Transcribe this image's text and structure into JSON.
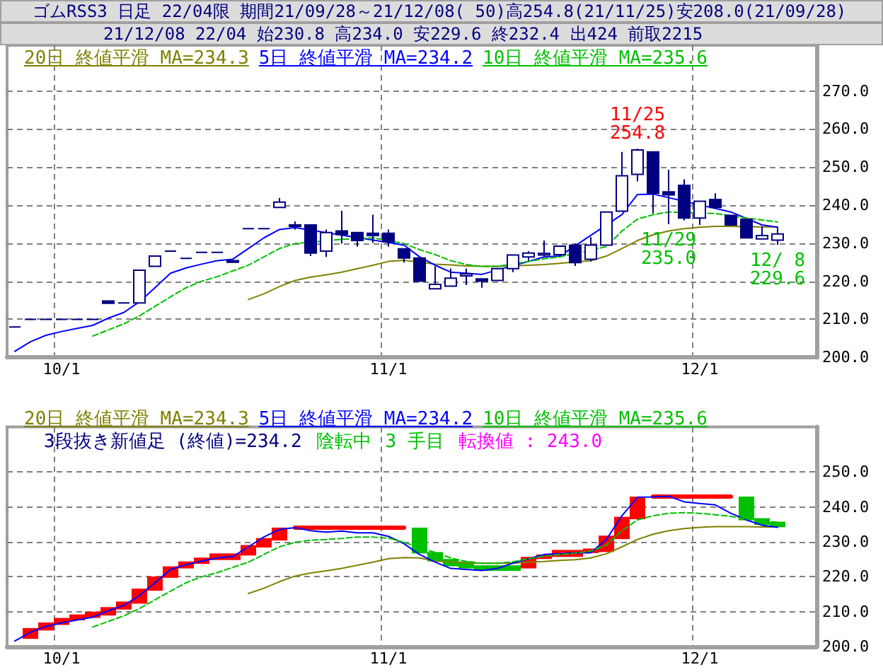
{
  "chart_data": [
    {
      "type": "candlestick",
      "title": "ゴムRSS3 日足 22/04限 期間21/09/28～21/12/08( 50)高254.8(21/11/25)安208.0(21/09/28)",
      "subtitle": "21/12/08 22/04 始230.8 高234.0 安229.6 終232.4 出424 前取2215",
      "categories": [
        null,
        null,
        null,
        "10/1",
        null,
        null,
        null,
        null,
        null,
        null,
        null,
        null,
        null,
        null,
        null,
        null,
        null,
        null,
        null,
        null,
        null,
        null,
        null,
        null,
        "11/1",
        null,
        null,
        null,
        null,
        null,
        null,
        null,
        null,
        null,
        null,
        null,
        null,
        null,
        null,
        null,
        null,
        null,
        null,
        null,
        "12/1",
        null,
        null,
        null,
        null,
        null
      ],
      "ohlc": [
        [
          208.0,
          208.0,
          208.0,
          208.0
        ],
        [
          210.0,
          210.0,
          210.0,
          210.0
        ],
        [
          210.0,
          210.0,
          210.0,
          210.0
        ],
        [
          210.0,
          210.0,
          210.0,
          210.0
        ],
        [
          210.0,
          210.0,
          210.0,
          210.0
        ],
        [
          210.0,
          210.0,
          210.0,
          210.0
        ],
        [
          214.8,
          214.8,
          214.2,
          214.2
        ],
        [
          214.3,
          214.3,
          214.3,
          214.3
        ],
        [
          214.3,
          222.9,
          214.3,
          222.9
        ],
        [
          223.9,
          226.6,
          223.9,
          226.6
        ],
        [
          227.9,
          227.9,
          227.9,
          227.9
        ],
        [
          226.0,
          226.0,
          226.0,
          226.0
        ],
        [
          227.6,
          227.6,
          227.6,
          227.6
        ],
        [
          227.6,
          227.6,
          227.6,
          227.6
        ],
        [
          225.4,
          225.4,
          225.0,
          225.0
        ],
        [
          233.8,
          233.8,
          233.8,
          233.8
        ],
        [
          233.8,
          233.8,
          233.8,
          233.8
        ],
        [
          239.4,
          241.9,
          239.4,
          240.8
        ],
        [
          234.4,
          235.7,
          233.6,
          234.8
        ],
        [
          234.8,
          234.8,
          226.6,
          227.4
        ],
        [
          227.9,
          233.6,
          226.4,
          232.8
        ],
        [
          233.2,
          238.5,
          229.9,
          232.3
        ],
        [
          232.8,
          232.8,
          229.1,
          230.7
        ],
        [
          232.6,
          237.5,
          230.1,
          232.0
        ],
        [
          232.6,
          233.6,
          229.1,
          230.4
        ],
        [
          228.5,
          228.5,
          224.9,
          226.1
        ],
        [
          226.1,
          226.1,
          220.0,
          220.0
        ],
        [
          218.0,
          223.9,
          218.0,
          219.2
        ],
        [
          218.7,
          223.3,
          218.7,
          220.8
        ],
        [
          221.4,
          223.3,
          219.0,
          221.9
        ],
        [
          220.6,
          220.6,
          218.3,
          220.0
        ],
        [
          220.2,
          223.3,
          220.2,
          223.3
        ],
        [
          223.3,
          226.9,
          222.4,
          226.9
        ],
        [
          226.4,
          227.9,
          225.4,
          227.4
        ],
        [
          226.9,
          230.7,
          226.4,
          227.3
        ],
        [
          227.0,
          229.2,
          226.5,
          229.2
        ],
        [
          229.5,
          229.9,
          224.0,
          224.9
        ],
        [
          225.8,
          231.6,
          225.2,
          229.5
        ],
        [
          229.5,
          238.2,
          229.5,
          238.2
        ],
        [
          238.4,
          254.0,
          238.4,
          247.7
        ],
        [
          248.1,
          254.8,
          246.2,
          254.5
        ],
        [
          254.0,
          254.0,
          237.8,
          243.1
        ],
        [
          243.5,
          249.3,
          235.0,
          242.7
        ],
        [
          245.2,
          246.8,
          236.0,
          236.6
        ],
        [
          236.6,
          241.0,
          234.8,
          241.0
        ],
        [
          241.5,
          243.1,
          239.0,
          239.4
        ],
        [
          237.3,
          237.3,
          234.8,
          234.8
        ],
        [
          236.3,
          236.3,
          231.4,
          231.4
        ],
        [
          231.1,
          234.4,
          231.1,
          232.0
        ],
        [
          230.8,
          234.0,
          229.6,
          232.4
        ]
      ],
      "color": "#000080",
      "series": [
        {
          "name": "20日 終値平滑 MA=234.3",
          "type": "line",
          "color": "#808000",
          "line_style": "solid",
          "values": [
            null,
            null,
            null,
            null,
            null,
            null,
            null,
            null,
            null,
            null,
            null,
            null,
            null,
            null,
            null,
            215.2,
            216.7,
            218.6,
            220.2,
            221.1,
            221.7,
            222.4,
            223.3,
            224.2,
            225.2,
            225.5,
            null,
            224.5,
            224.3,
            224.0,
            223.9,
            223.9,
            null,
            224.2,
            224.4,
            224.7,
            null,
            225.4,
            226.6,
            228.6,
            230.7,
            232.2,
            233.2,
            233.8,
            234.2,
            234.4,
            234.4,
            null,
            234.3,
            234.3
          ]
        },
        {
          "name": "5日 終値平滑 MA=234.2",
          "type": "line",
          "color": "#0000ff",
          "line_style": "solid",
          "values": [
            201.6,
            204.1,
            205.8,
            206.8,
            207.6,
            208.4,
            210.3,
            211.8,
            214.6,
            218.3,
            222.1,
            223.5,
            224.5,
            225.4,
            225.8,
            228.6,
            231.4,
            233.6,
            234.1,
            null,
            null,
            null,
            null,
            null,
            null,
            229.5,
            226.4,
            224.2,
            222.4,
            222.1,
            221.8,
            null,
            null,
            225.2,
            226.4,
            226.6,
            null,
            null,
            null,
            237.5,
            242.8,
            242.9,
            null,
            null,
            null,
            null,
            238.2,
            null,
            234.8,
            234.2
          ]
        },
        {
          "name": "10日 終値平滑 MA=235.6",
          "type": "line",
          "color": "#00c000",
          "line_style": "dashed",
          "values": [
            null,
            null,
            null,
            null,
            null,
            205.6,
            207.2,
            208.8,
            210.9,
            213.4,
            215.9,
            218.3,
            220.0,
            221.2,
            222.7,
            224.2,
            226.4,
            228.6,
            229.9,
            null,
            null,
            231.0,
            null,
            231.4,
            null,
            229.9,
            228.3,
            227.0,
            225.4,
            224.4,
            223.9,
            223.9,
            null,
            225.2,
            225.9,
            226.4,
            null,
            null,
            229.1,
            233.2,
            236.3,
            237.5,
            238.2,
            null,
            null,
            237.8,
            null,
            236.6,
            236.1,
            235.6
          ]
        }
      ],
      "ylim": [
        200,
        282
      ],
      "yticks": [
        {
          "value": 200,
          "label": "200.0"
        },
        {
          "value": 210,
          "label": "210.0"
        },
        {
          "value": 220,
          "label": "220.0"
        },
        {
          "value": 230,
          "label": "230.0"
        },
        {
          "value": 240,
          "label": "240.0"
        },
        {
          "value": 250,
          "label": "250.0"
        },
        {
          "value": 260,
          "label": "260.0"
        },
        {
          "value": 270,
          "label": "270.0"
        }
      ],
      "grid": true,
      "legend": "top left",
      "marker": "none",
      "annotations": [
        {
          "text": "11/25\n254.8",
          "y": 254.8
        },
        {
          "text": "11/29\n235.0",
          "y": 235.0
        },
        {
          "text": "12/ 8\n229.6",
          "y": 229.6
        }
      ]
    },
    {
      "type": "bar",
      "title": "3段抜き新値足 (終値)=234.2",
      "annotations": [
        "陰転中",
        "3 手目",
        "転換値 : 243.0"
      ],
      "categories": [
        null,
        null,
        null,
        "10/1",
        null,
        null,
        null,
        null,
        null,
        null,
        null,
        null,
        null,
        null,
        null,
        null,
        null,
        null,
        null,
        null,
        null,
        null,
        null,
        null,
        "11/1",
        null,
        null,
        null,
        null,
        null,
        null,
        null,
        null,
        null,
        null,
        null,
        null,
        null,
        null,
        null,
        null,
        null,
        null,
        null,
        "12/1",
        null,
        null,
        null,
        null,
        null
      ],
      "series": [
        {
          "type": "bar",
          "base": [
            null,
            202.2,
            204.6,
            206.2,
            207.5,
            208.2,
            208.9,
            210.6,
            212.3,
            216.0,
            219.7,
            222.4,
            223.7,
            224.8,
            224.8,
            226.1,
            228.4,
            230.4,
            null,
            null,
            null,
            null,
            null,
            null,
            null,
            null,
            234.1,
            227.1,
            225.1,
            224.4,
            223.3,
            223.3,
            223.3,
            222.4,
            225.1,
            225.7,
            225.7,
            226.8,
            227.1,
            230.8,
            236.5,
            null,
            null,
            null,
            null,
            null,
            null,
            243.0,
            236.8,
            235.8
          ],
          "values": [
            null,
            3.1,
            2.3,
            2.0,
            1.7,
            1.8,
            2.4,
            2.3,
            4.3,
            4.1,
            3.3,
            2.0,
            1.8,
            1.9,
            1.9,
            3.0,
            2.7,
            3.7,
            null,
            null,
            null,
            null,
            null,
            null,
            null,
            null,
            -7.4,
            -2.7,
            -2.1,
            -2.0,
            -1.6,
            -1.6,
            -1.6,
            3.3,
            1.3,
            2.0,
            2.0,
            1.3,
            4.7,
            6.4,
            6.5,
            null,
            null,
            null,
            null,
            null,
            null,
            -6.8,
            -1.9,
            -1.6
          ],
          "colors": [
            null,
            "#ff0000",
            "#ff0000",
            "#ff0000",
            "#ff0000",
            "#ff0000",
            "#ff0000",
            "#ff0000",
            "#ff0000",
            "#ff0000",
            "#ff0000",
            "#ff0000",
            "#ff0000",
            "#ff0000",
            "#ff0000",
            "#ff0000",
            "#ff0000",
            "#ff0000",
            null,
            null,
            null,
            null,
            null,
            null,
            null,
            null,
            "#00c000",
            "#00c000",
            "#00c000",
            "#00c000",
            "#00c000",
            "#00c000",
            "#00c000",
            "#ff0000",
            "#ff0000",
            "#ff0000",
            "#ff0000",
            "#ff0000",
            "#ff0000",
            "#ff0000",
            "#ff0000",
            null,
            null,
            null,
            null,
            null,
            null,
            "#00c000",
            "#00c000",
            "#00c000"
          ]
        },
        {
          "type": "line",
          "color": "#ff0000",
          "line_style": "solid",
          "values": [
            null,
            null,
            null,
            null,
            null,
            null,
            null,
            null,
            null,
            null,
            null,
            null,
            null,
            null,
            null,
            null,
            null,
            null,
            234.1,
            234.1,
            234.1,
            234.1,
            234.1,
            234.1,
            234.1,
            234.1,
            null,
            null,
            null,
            null,
            null,
            null,
            null,
            null,
            null,
            null,
            null,
            null,
            null,
            null,
            null,
            243.0,
            243.0,
            243.0,
            243.0,
            243.0,
            243.0,
            null,
            null,
            null
          ]
        },
        {
          "name": "20日 終値平滑 MA=234.3",
          "type": "line",
          "color": "#808000",
          "line_style": "solid",
          "values": [
            null,
            null,
            null,
            null,
            null,
            null,
            null,
            null,
            null,
            null,
            null,
            null,
            null,
            null,
            null,
            215.2,
            216.7,
            218.6,
            220.2,
            221.1,
            221.7,
            222.4,
            223.3,
            224.2,
            225.2,
            225.5,
            225.4,
            224.5,
            224.3,
            224.0,
            223.9,
            223.9,
            223.9,
            224.2,
            224.4,
            224.7,
            224.9,
            225.4,
            226.6,
            228.6,
            230.7,
            232.2,
            233.2,
            233.8,
            234.2,
            234.4,
            234.4,
            234.4,
            234.3,
            234.3
          ]
        },
        {
          "name": "5日 終値平滑 MA=234.2",
          "type": "line",
          "color": "#0000ff",
          "line_style": "solid",
          "values": [
            201.6,
            204.1,
            205.8,
            206.8,
            207.6,
            208.4,
            210.3,
            211.8,
            214.6,
            218.3,
            222.1,
            223.5,
            224.5,
            225.4,
            225.8,
            228.6,
            231.4,
            233.6,
            234.1,
            233.2,
            232.8,
            233.1,
            232.6,
            232.6,
            231.6,
            229.5,
            226.4,
            224.2,
            222.4,
            222.1,
            221.8,
            222.4,
            223.9,
            225.2,
            226.4,
            226.6,
            226.9,
            226.9,
            230.7,
            237.5,
            242.8,
            242.9,
            243.1,
            241.5,
            241.0,
            240.6,
            238.2,
            236.3,
            234.8,
            234.2
          ]
        },
        {
          "name": "10日 終値平滑 MA=235.6",
          "type": "line",
          "color": "#00c000",
          "line_style": "dashed",
          "values": [
            null,
            null,
            null,
            null,
            null,
            205.6,
            207.2,
            208.8,
            210.9,
            213.4,
            215.9,
            218.3,
            220.0,
            221.2,
            222.7,
            224.2,
            226.4,
            228.6,
            229.9,
            230.5,
            230.7,
            231.0,
            231.4,
            231.4,
            231.1,
            229.9,
            228.3,
            227.0,
            225.4,
            224.4,
            223.9,
            223.9,
            224.3,
            225.2,
            225.9,
            226.4,
            226.8,
            227.4,
            229.1,
            233.2,
            236.3,
            237.5,
            238.2,
            238.4,
            238.2,
            237.8,
            237.3,
            236.6,
            236.1,
            235.6
          ]
        }
      ],
      "ylim": [
        200,
        263
      ],
      "yticks": [
        {
          "value": 200,
          "label": "200.0"
        },
        {
          "value": 210,
          "label": "210.0"
        },
        {
          "value": 220,
          "label": "220.0"
        },
        {
          "value": 230,
          "label": "230.0"
        },
        {
          "value": 240,
          "label": "240.0"
        },
        {
          "value": 250,
          "label": "250.0"
        }
      ],
      "grid": true,
      "legend": "top left",
      "marker": "none"
    }
  ]
}
